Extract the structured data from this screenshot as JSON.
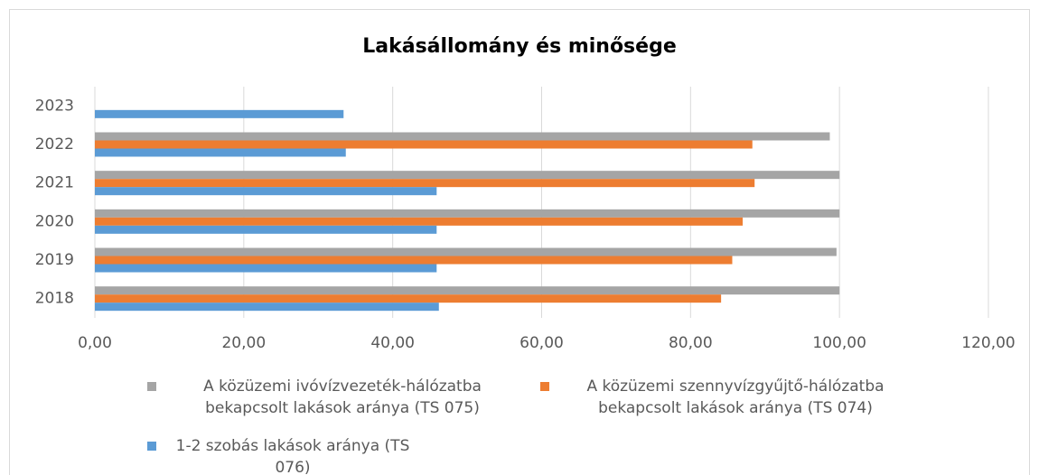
{
  "chart_data": {
    "type": "hbar",
    "title": "Lakásállomány és minősége",
    "categories": [
      "2018",
      "2019",
      "2020",
      "2021",
      "2022",
      "2023"
    ],
    "series": [
      {
        "name": "A közüzemi ivóvízvezeték-hálózatba bekapcsolt lakások aránya (TS 075)",
        "color": "#a5a5a5",
        "values": [
          100,
          99.6,
          100,
          100,
          98.7,
          null
        ]
      },
      {
        "name": "A közüzemi szennyvízgyűjtő-hálózatba bekapcsolt lakások aránya (TS 074)",
        "color": "#ed7d31",
        "values": [
          84.1,
          85.6,
          87.0,
          88.6,
          88.3,
          null
        ]
      },
      {
        "name": "1-2 szobás lakások aránya (TS 076)",
        "color": "#5b9bd5",
        "values": [
          46.2,
          45.9,
          45.9,
          45.9,
          33.7,
          33.4
        ]
      }
    ],
    "xlim": [
      0,
      120
    ],
    "xticks": [
      {
        "value": 0,
        "label": "0,00"
      },
      {
        "value": 20,
        "label": "20,00"
      },
      {
        "value": 40,
        "label": "40,00"
      },
      {
        "value": 60,
        "label": "60,00"
      },
      {
        "value": 80,
        "label": "80,00"
      },
      {
        "value": 100,
        "label": "100,00"
      },
      {
        "value": 120,
        "label": "120,00"
      }
    ],
    "grid": true,
    "legend": "bottom"
  }
}
